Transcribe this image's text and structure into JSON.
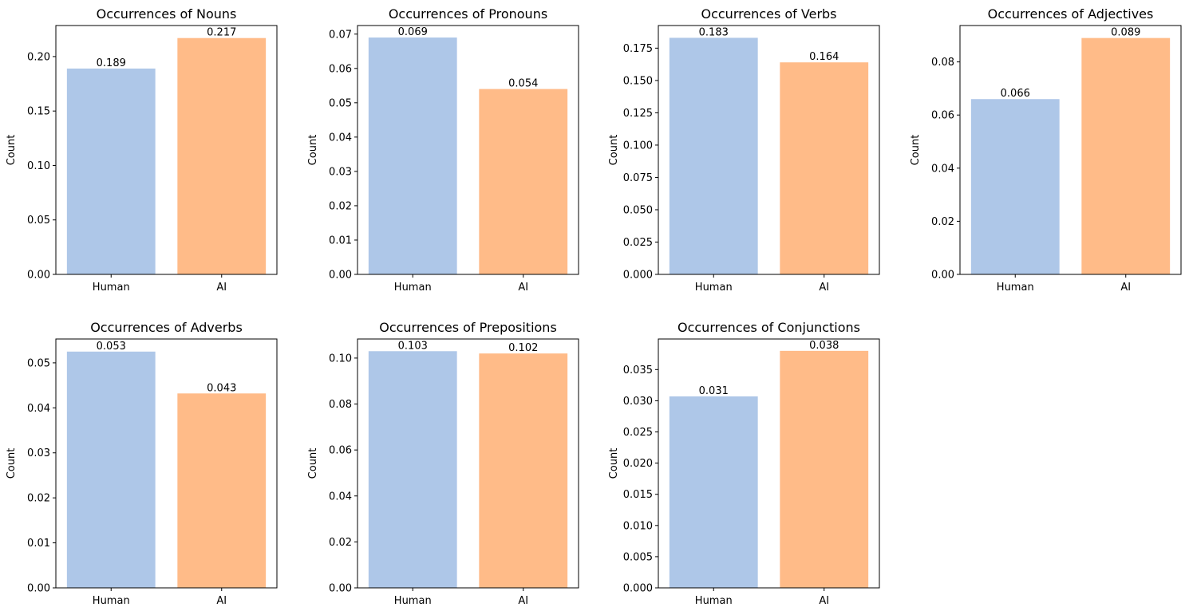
{
  "figure": {
    "background": "#ffffff"
  },
  "colors": {
    "Human": "#aec7e8",
    "AI": "#ffbb88"
  },
  "chart_data": [
    {
      "type": "bar",
      "title": "Occurrences of Nouns",
      "categories": [
        "Human",
        "AI"
      ],
      "values": [
        0.189,
        0.217
      ],
      "value_labels": [
        "0.189",
        "0.217"
      ],
      "ylabel": "Count",
      "ylim": [
        0,
        0.2285
      ],
      "yticks": [
        "0.00",
        "0.05",
        "0.10",
        "0.15",
        "0.20"
      ],
      "grid": false
    },
    {
      "type": "bar",
      "title": "Occurrences of Pronouns",
      "categories": [
        "Human",
        "AI"
      ],
      "values": [
        0.069,
        0.054
      ],
      "value_labels": [
        "0.069",
        "0.054"
      ],
      "ylabel": "Count",
      "ylim": [
        0,
        0.0725
      ],
      "yticks": [
        "0.00",
        "0.01",
        "0.02",
        "0.03",
        "0.04",
        "0.05",
        "0.06",
        "0.07"
      ],
      "grid": false
    },
    {
      "type": "bar",
      "title": "Occurrences of Verbs",
      "categories": [
        "Human",
        "AI"
      ],
      "values": [
        0.183,
        0.164
      ],
      "value_labels": [
        "0.183",
        "0.164"
      ],
      "ylabel": "Count",
      "ylim": [
        0,
        0.1925
      ],
      "yticks": [
        "0.000",
        "0.025",
        "0.050",
        "0.075",
        "0.100",
        "0.125",
        "0.150",
        "0.175"
      ],
      "grid": false
    },
    {
      "type": "bar",
      "title": "Occurrences of Adjectives",
      "categories": [
        "Human",
        "AI"
      ],
      "values": [
        0.066,
        0.089
      ],
      "value_labels": [
        "0.066",
        "0.089"
      ],
      "ylabel": "Count",
      "ylim": [
        0,
        0.0937
      ],
      "yticks": [
        "0.00",
        "0.02",
        "0.04",
        "0.06",
        "0.08"
      ],
      "grid": false
    },
    {
      "type": "bar",
      "title": "Occurrences of Adverbs",
      "categories": [
        "Human",
        "AI"
      ],
      "values": [
        0.0525,
        0.0432
      ],
      "value_labels": [
        "0.053",
        "0.043"
      ],
      "ylabel": "Count",
      "ylim": [
        0,
        0.0553
      ],
      "yticks": [
        "0.00",
        "0.01",
        "0.02",
        "0.03",
        "0.04",
        "0.05"
      ],
      "grid": false
    },
    {
      "type": "bar",
      "title": "Occurrences of Prepositions",
      "categories": [
        "Human",
        "AI"
      ],
      "values": [
        0.103,
        0.102
      ],
      "value_labels": [
        "0.103",
        "0.102"
      ],
      "ylabel": "Count",
      "ylim": [
        0,
        0.1083
      ],
      "yticks": [
        "0.00",
        "0.02",
        "0.04",
        "0.06",
        "0.08",
        "0.10"
      ],
      "grid": false
    },
    {
      "type": "bar",
      "title": "Occurrences of Conjunctions",
      "categories": [
        "Human",
        "AI"
      ],
      "values": [
        0.0307,
        0.038
      ],
      "value_labels": [
        "0.031",
        "0.038"
      ],
      "ylabel": "Count",
      "ylim": [
        0,
        0.0399
      ],
      "yticks": [
        "0.000",
        "0.005",
        "0.010",
        "0.015",
        "0.020",
        "0.025",
        "0.030",
        "0.035"
      ],
      "grid": false
    }
  ]
}
